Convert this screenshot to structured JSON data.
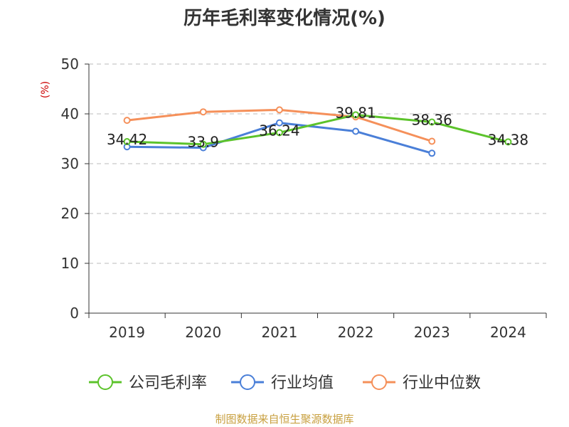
{
  "chart_data": {
    "type": "line",
    "title": "历年毛利率变化情况(%)",
    "ylabel": "(%)",
    "xlabel": "",
    "categories": [
      "2019",
      "2020",
      "2021",
      "2022",
      "2023",
      "2024"
    ],
    "ylim": [
      0,
      50
    ],
    "yticks": [
      0,
      10,
      20,
      30,
      40,
      50
    ],
    "grid": true,
    "legend_position": "bottom",
    "series": [
      {
        "name": "公司毛利率",
        "color": "#5cc32b",
        "values": [
          34.42,
          33.9,
          36.24,
          39.81,
          38.36,
          34.38
        ],
        "labels": [
          "34.42",
          "33.9",
          "36.24",
          "39.81",
          "38.36",
          "34.38"
        ]
      },
      {
        "name": "行业均值",
        "color": "#4a7fd8",
        "values": [
          33.4,
          33.2,
          38.2,
          36.5,
          32.1,
          null
        ]
      },
      {
        "name": "行业中位数",
        "color": "#f5905a",
        "values": [
          38.7,
          40.4,
          40.8,
          39.4,
          34.5,
          null
        ]
      }
    ]
  },
  "source_text": "制图数据来自恒生聚源数据库"
}
